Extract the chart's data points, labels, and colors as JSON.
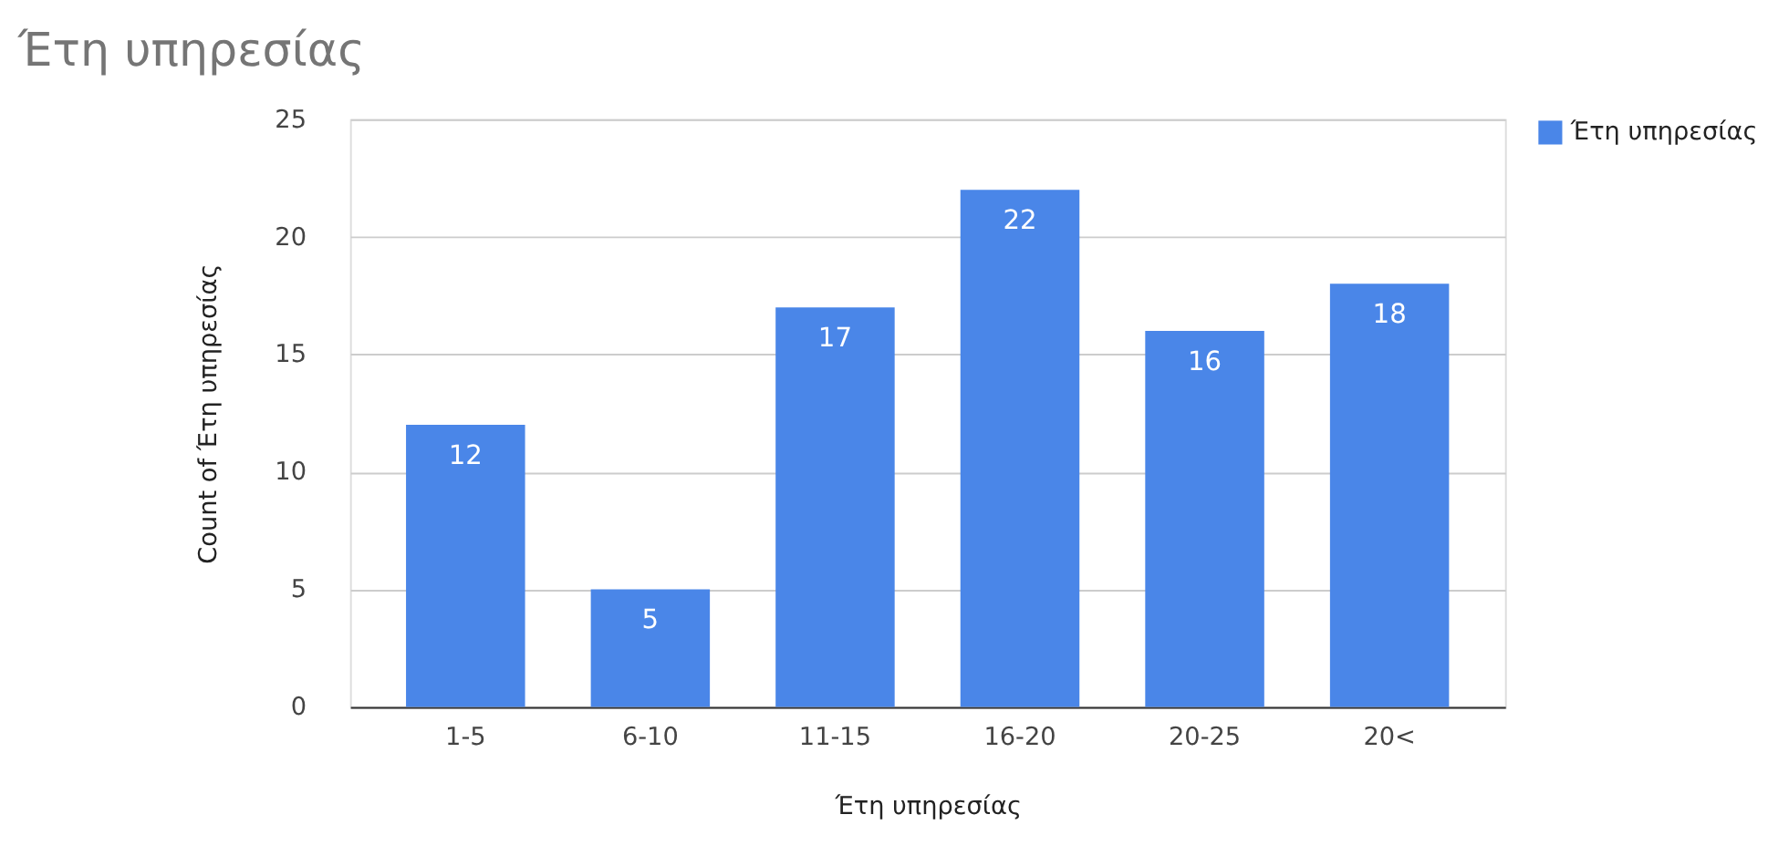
{
  "chart_data": {
    "type": "bar",
    "title": "Έτη υπηρεσίας",
    "xlabel": "Έτη υπηρεσίας",
    "ylabel": "Count of Έτη υπηρεσίας",
    "categories": [
      "1-5",
      "6-10",
      "11-15",
      "16-20",
      "20-25",
      "20<"
    ],
    "series": [
      {
        "name": "Έτη υπηρεσίας",
        "color": "#4a86e8",
        "values": [
          12,
          5,
          17,
          22,
          16,
          18
        ]
      }
    ],
    "ylim": [
      0,
      25
    ],
    "yticks": [
      0,
      5,
      10,
      15,
      20,
      25
    ],
    "grid": "y",
    "legend": "top right",
    "data_labels": true
  }
}
